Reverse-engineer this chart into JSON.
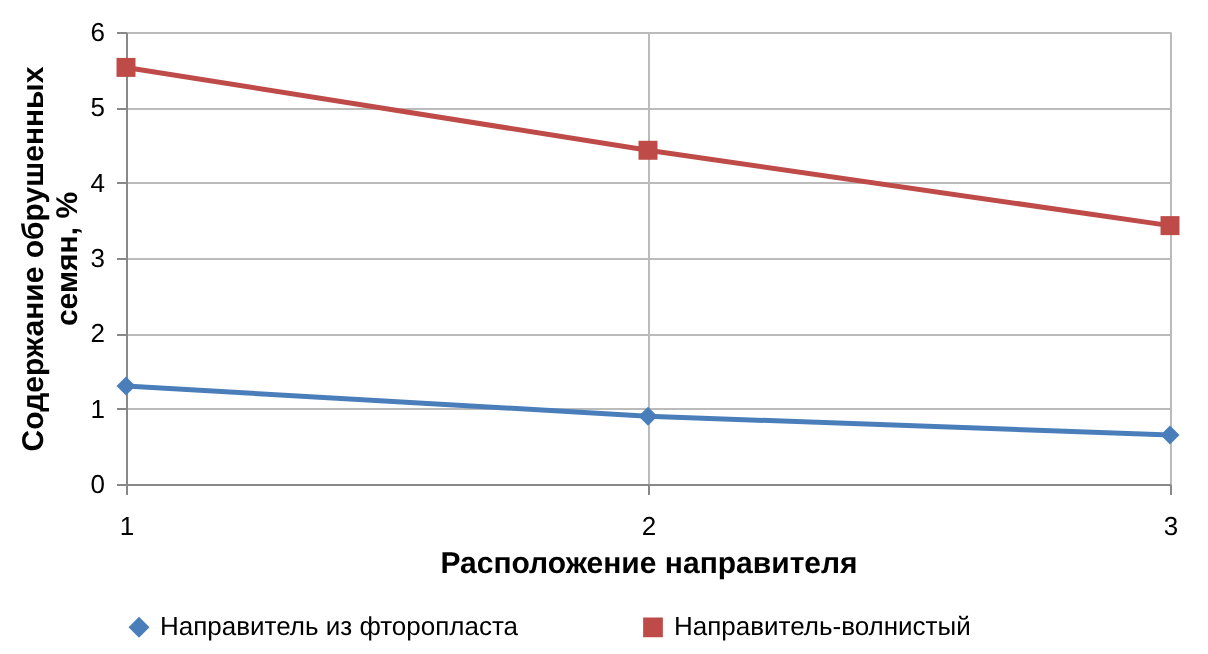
{
  "chart_data": {
    "type": "line",
    "xlabel": "Расположение направителя",
    "ylabel": "Содержание обрушенных семян, %",
    "x": [
      1,
      2,
      3
    ],
    "xlim": [
      1,
      3
    ],
    "xticks": [
      1,
      2,
      3
    ],
    "ylim": [
      0,
      6
    ],
    "yticks": [
      0,
      1,
      2,
      3,
      4,
      5,
      6
    ],
    "grid": true,
    "legend": "bottom",
    "series": [
      {
        "name": "Направитель из фторопласта",
        "color": "#4a7ebb",
        "marker": "diamond",
        "values": [
          1.3,
          0.9,
          0.65
        ]
      },
      {
        "name": "Направитель-волнистый",
        "color": "#be4b48",
        "marker": "square",
        "values": [
          5.53,
          4.43,
          3.43
        ]
      }
    ]
  }
}
